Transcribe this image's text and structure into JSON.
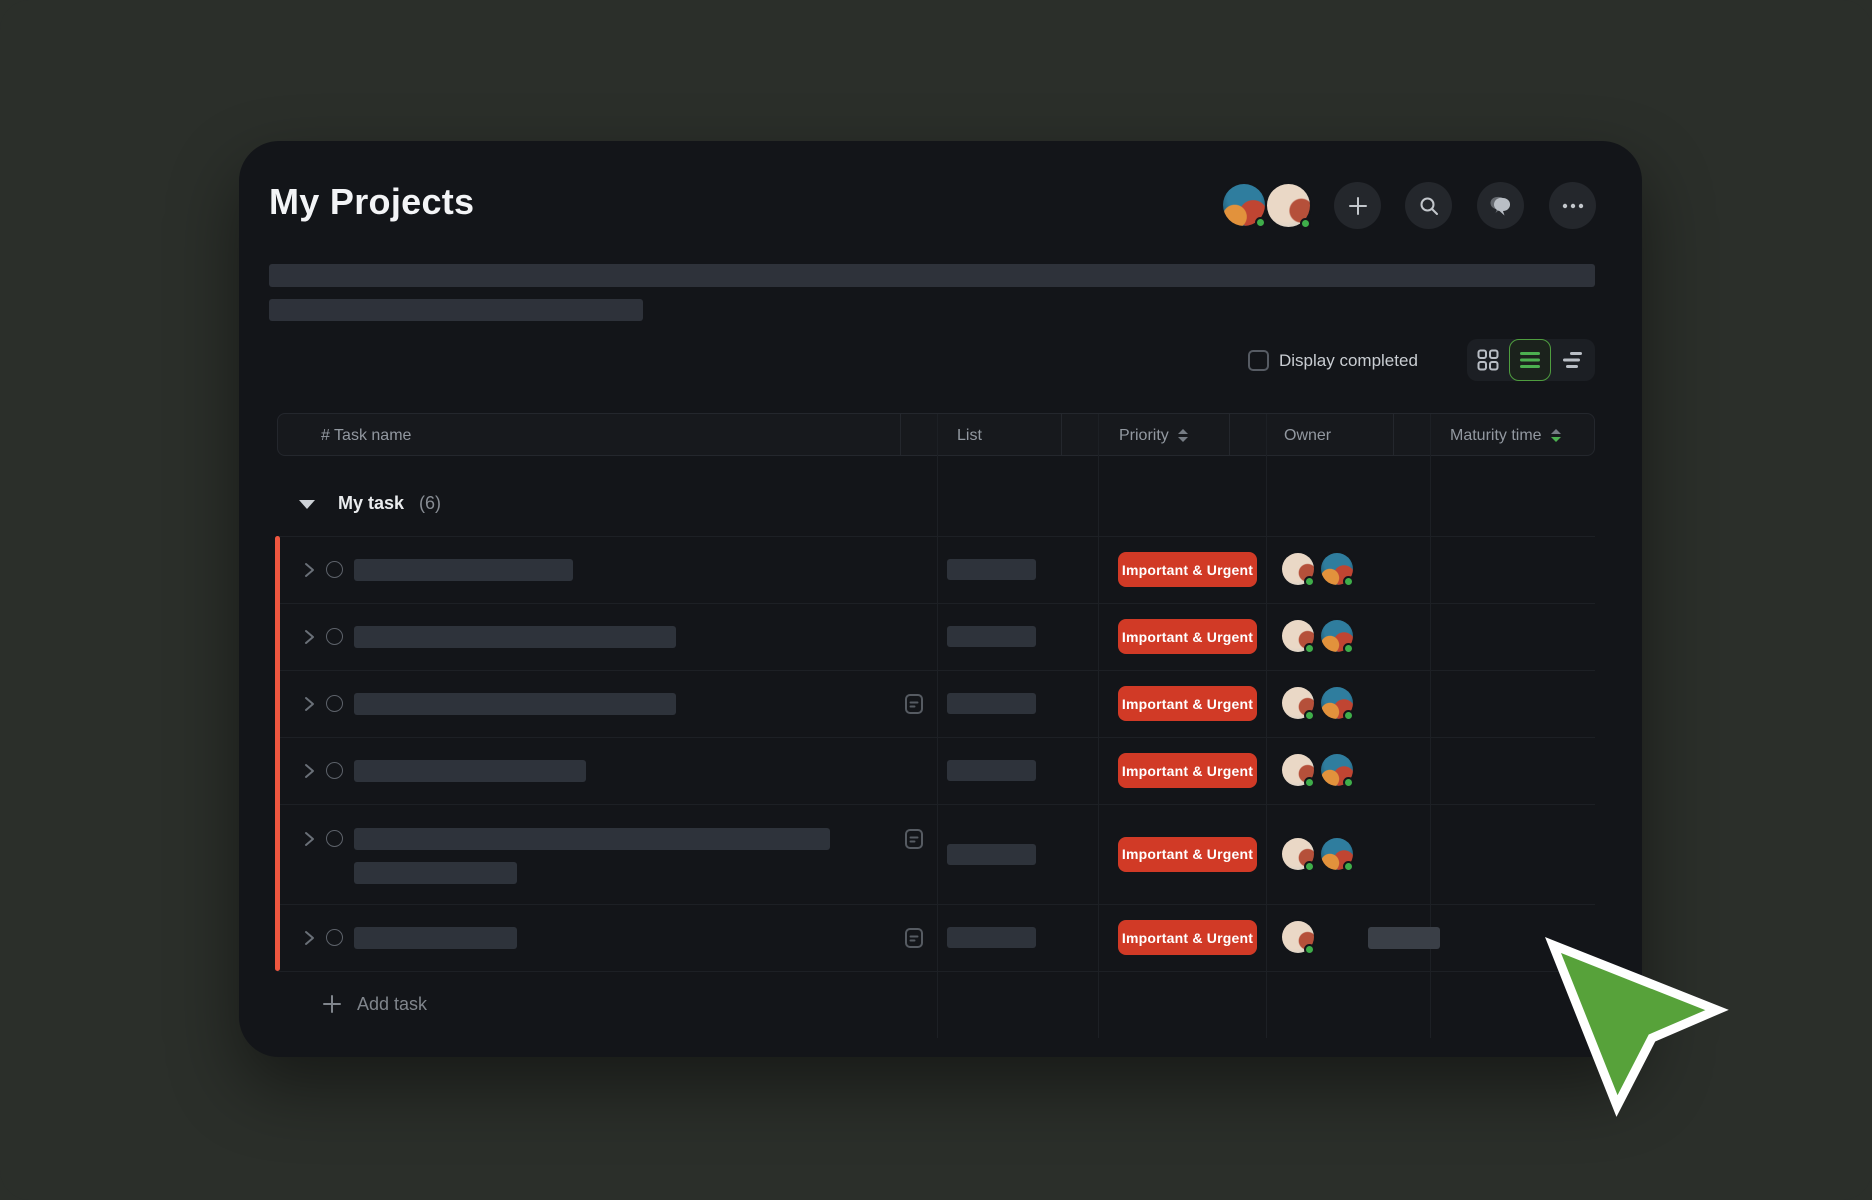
{
  "page": {
    "title": "My Projects"
  },
  "header": {
    "avatars": [
      {
        "name": "character-avatar",
        "status": "online"
      },
      {
        "name": "photo-avatar",
        "status": "online"
      }
    ],
    "buttons": [
      {
        "icon": "plus-icon"
      },
      {
        "icon": "search-icon"
      },
      {
        "icon": "chat-icon"
      },
      {
        "icon": "more-ellipsis-icon"
      }
    ]
  },
  "intro_placeholders": {
    "count": 2
  },
  "controls": {
    "display_completed_label": "Display completed",
    "checkbox_checked": false,
    "view_modes": [
      {
        "name": "grid-view",
        "active": false
      },
      {
        "name": "list-view",
        "active": true
      },
      {
        "name": "sort-lines-view",
        "active": false
      }
    ]
  },
  "table": {
    "columns": [
      {
        "label": "# Task name",
        "sortable": false
      },
      {
        "label": "List",
        "sortable": false
      },
      {
        "label": "Priority",
        "sortable": true,
        "sort": "none"
      },
      {
        "label": "Owner",
        "sortable": false
      },
      {
        "label": "Maturity time",
        "sortable": true,
        "sort": "desc"
      }
    ],
    "group": {
      "label": "My task",
      "count": "(6)"
    },
    "rows": [
      {
        "bars": [
          219
        ],
        "note_icon": false,
        "list_bar": true,
        "priority": "Important & Urgent",
        "owners": [
          "photo",
          "character"
        ],
        "owner_placeholder": false
      },
      {
        "bars": [
          322
        ],
        "note_icon": false,
        "list_bar": true,
        "priority": "Important & Urgent",
        "owners": [
          "photo",
          "character"
        ],
        "owner_placeholder": false
      },
      {
        "bars": [
          322
        ],
        "note_icon": true,
        "list_bar": true,
        "priority": "Important & Urgent",
        "owners": [
          "photo",
          "character"
        ],
        "owner_placeholder": false
      },
      {
        "bars": [
          232
        ],
        "note_icon": false,
        "list_bar": true,
        "priority": "Important & Urgent",
        "owners": [
          "photo",
          "character"
        ],
        "owner_placeholder": false
      },
      {
        "bars": [
          476,
          163
        ],
        "note_icon": true,
        "list_bar": true,
        "priority": "Important & Urgent",
        "owners": [
          "photo",
          "character"
        ],
        "owner_placeholder": false
      },
      {
        "bars": [
          163
        ],
        "note_icon": true,
        "list_bar": true,
        "priority": "Important & Urgent",
        "owners": [
          "photo"
        ],
        "owner_placeholder": true
      }
    ],
    "add_task_label": "Add task"
  },
  "colors": {
    "page_background": "#2b2f2a",
    "card_background": "#131519",
    "accent_red": "#ef5740",
    "badge_red": "#d13a26",
    "active_green": "#4caf50",
    "status_dot_green": "#3fae4a",
    "cursor_green": "#57a23a",
    "placeholder_bar": "#2e333b"
  }
}
